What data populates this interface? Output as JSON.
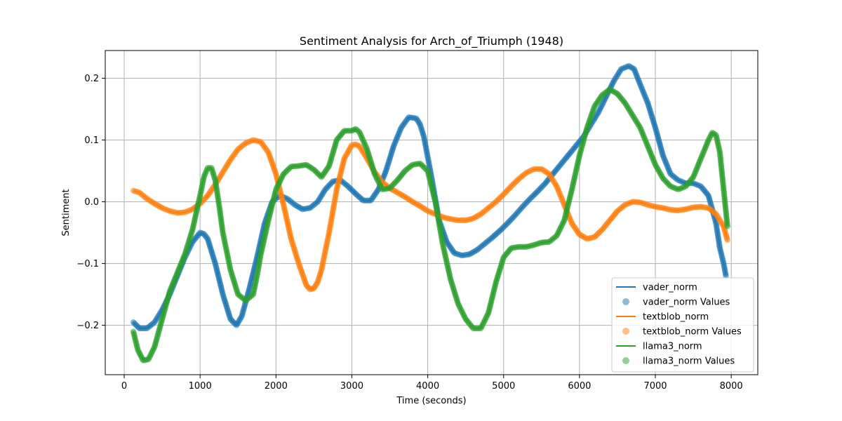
{
  "chart_data": {
    "type": "line",
    "title": "Sentiment Analysis for Arch_of_Triumph (1948)",
    "xlabel": "Time (seconds)",
    "ylabel": "Sentiment",
    "xlim": [
      -250,
      8350
    ],
    "ylim": [
      -0.28,
      0.245
    ],
    "xticks": [
      0,
      1000,
      2000,
      3000,
      4000,
      5000,
      6000,
      7000,
      8000
    ],
    "yticks": [
      -0.2,
      -0.1,
      0.0,
      0.1,
      0.2
    ],
    "xtick_labels": [
      "0",
      "1000",
      "2000",
      "3000",
      "4000",
      "5000",
      "6000",
      "7000",
      "8000"
    ],
    "ytick_labels": [
      "−0.2",
      "−0.1",
      "0.0",
      "0.1",
      "0.2"
    ],
    "grid": true,
    "legend_position": "lower-right",
    "series": [
      {
        "name": "vader_norm",
        "color": "#1f77b4",
        "x": [
          120,
          200,
          300,
          400,
          500,
          600,
          700,
          800,
          900,
          1000,
          1050,
          1100,
          1200,
          1300,
          1400,
          1480,
          1550,
          1650,
          1750,
          1850,
          1950,
          2050,
          2150,
          2250,
          2350,
          2450,
          2550,
          2650,
          2750,
          2850,
          2950,
          3050,
          3150,
          3250,
          3350,
          3450,
          3550,
          3650,
          3750,
          3850,
          3900,
          3950,
          4050,
          4150,
          4250,
          4350,
          4450,
          4550,
          4650,
          4750,
          4850,
          4950,
          5050,
          5150,
          5250,
          5350,
          5450,
          5550,
          5650,
          5750,
          5850,
          5950,
          6050,
          6150,
          6250,
          6350,
          6450,
          6550,
          6650,
          6720,
          6800,
          6900,
          7000,
          7100,
          7200,
          7300,
          7400,
          7500,
          7600,
          7700,
          7800,
          7850,
          7900,
          7930
        ],
        "y": [
          -0.195,
          -0.205,
          -0.205,
          -0.195,
          -0.175,
          -0.15,
          -0.12,
          -0.09,
          -0.065,
          -0.05,
          -0.052,
          -0.06,
          -0.1,
          -0.15,
          -0.19,
          -0.2,
          -0.185,
          -0.14,
          -0.09,
          -0.035,
          0.0,
          0.01,
          0.005,
          -0.005,
          -0.012,
          -0.01,
          0.0,
          0.02,
          0.033,
          0.035,
          0.025,
          0.013,
          0.002,
          0.002,
          0.02,
          0.05,
          0.09,
          0.12,
          0.137,
          0.135,
          0.125,
          0.105,
          0.04,
          -0.03,
          -0.065,
          -0.083,
          -0.087,
          -0.085,
          -0.078,
          -0.068,
          -0.058,
          -0.047,
          -0.035,
          -0.022,
          -0.008,
          0.005,
          0.017,
          0.03,
          0.045,
          0.06,
          0.075,
          0.09,
          0.105,
          0.125,
          0.145,
          0.17,
          0.195,
          0.215,
          0.22,
          0.215,
          0.19,
          0.16,
          0.12,
          0.075,
          0.045,
          0.035,
          0.03,
          0.03,
          0.025,
          0.01,
          -0.035,
          -0.075,
          -0.1,
          -0.12
        ]
      },
      {
        "name": "textblob_norm",
        "color": "#ff7f0e",
        "x": [
          120,
          200,
          300,
          400,
          500,
          600,
          700,
          800,
          900,
          1000,
          1100,
          1200,
          1300,
          1400,
          1500,
          1600,
          1700,
          1800,
          1900,
          2000,
          2100,
          2200,
          2300,
          2400,
          2450,
          2500,
          2550,
          2600,
          2700,
          2800,
          2900,
          3000,
          3050,
          3100,
          3200,
          3300,
          3400,
          3500,
          3600,
          3700,
          3800,
          3900,
          4000,
          4100,
          4200,
          4300,
          4400,
          4500,
          4600,
          4700,
          4800,
          4900,
          5000,
          5100,
          5200,
          5300,
          5400,
          5500,
          5600,
          5700,
          5800,
          5900,
          6000,
          6100,
          6200,
          6300,
          6400,
          6500,
          6600,
          6700,
          6800,
          6900,
          7000,
          7100,
          7200,
          7300,
          7400,
          7500,
          7600,
          7700,
          7800,
          7900,
          7950
        ],
        "y": [
          0.018,
          0.015,
          0.005,
          -0.003,
          -0.01,
          -0.015,
          -0.018,
          -0.017,
          -0.012,
          -0.003,
          0.01,
          0.028,
          0.048,
          0.068,
          0.085,
          0.095,
          0.1,
          0.097,
          0.08,
          0.045,
          -0.005,
          -0.06,
          -0.1,
          -0.135,
          -0.142,
          -0.14,
          -0.13,
          -0.11,
          -0.05,
          0.02,
          0.07,
          0.092,
          0.093,
          0.09,
          0.07,
          0.048,
          0.032,
          0.022,
          0.015,
          0.008,
          0.0,
          -0.007,
          -0.015,
          -0.02,
          -0.025,
          -0.028,
          -0.03,
          -0.03,
          -0.027,
          -0.02,
          -0.01,
          0.0,
          0.012,
          0.025,
          0.037,
          0.047,
          0.053,
          0.053,
          0.045,
          0.025,
          -0.005,
          -0.035,
          -0.053,
          -0.06,
          -0.057,
          -0.045,
          -0.03,
          -0.015,
          -0.005,
          0.0,
          -0.001,
          -0.005,
          -0.008,
          -0.01,
          -0.013,
          -0.014,
          -0.012,
          -0.009,
          -0.008,
          -0.01,
          -0.02,
          -0.04,
          -0.062
        ]
      },
      {
        "name": "llama3_norm",
        "color": "#2ca02c",
        "x": [
          120,
          180,
          250,
          320,
          400,
          500,
          600,
          700,
          800,
          900,
          1000,
          1050,
          1100,
          1150,
          1200,
          1250,
          1300,
          1400,
          1500,
          1600,
          1700,
          1750,
          1800,
          1900,
          2000,
          2100,
          2200,
          2300,
          2400,
          2500,
          2600,
          2700,
          2800,
          2900,
          3000,
          3050,
          3100,
          3200,
          3300,
          3400,
          3500,
          3600,
          3700,
          3800,
          3900,
          4000,
          4100,
          4200,
          4300,
          4400,
          4500,
          4600,
          4700,
          4800,
          4900,
          5000,
          5100,
          5200,
          5300,
          5400,
          5500,
          5600,
          5700,
          5800,
          5900,
          6000,
          6100,
          6200,
          6300,
          6400,
          6500,
          6600,
          6700,
          6800,
          6900,
          7000,
          7100,
          7200,
          7300,
          7400,
          7500,
          7600,
          7700,
          7750,
          7800,
          7850,
          7900,
          7950
        ],
        "y": [
          -0.21,
          -0.24,
          -0.257,
          -0.255,
          -0.235,
          -0.19,
          -0.145,
          -0.115,
          -0.085,
          -0.045,
          0.01,
          0.04,
          0.055,
          0.055,
          0.035,
          -0.005,
          -0.05,
          -0.11,
          -0.15,
          -0.16,
          -0.15,
          -0.12,
          -0.085,
          -0.03,
          0.02,
          0.045,
          0.057,
          0.058,
          0.06,
          0.052,
          0.04,
          0.058,
          0.1,
          0.115,
          0.115,
          0.118,
          0.113,
          0.085,
          0.045,
          0.02,
          0.022,
          0.035,
          0.05,
          0.06,
          0.062,
          0.05,
          0.0,
          -0.07,
          -0.125,
          -0.165,
          -0.19,
          -0.205,
          -0.205,
          -0.18,
          -0.13,
          -0.09,
          -0.075,
          -0.073,
          -0.073,
          -0.07,
          -0.066,
          -0.065,
          -0.055,
          -0.03,
          0.02,
          0.075,
          0.12,
          0.155,
          0.173,
          0.182,
          0.175,
          0.16,
          0.14,
          0.12,
          0.09,
          0.06,
          0.038,
          0.025,
          0.02,
          0.025,
          0.04,
          0.07,
          0.1,
          0.112,
          0.108,
          0.08,
          0.02,
          -0.04
        ]
      }
    ],
    "legend_entries": [
      "vader_norm",
      "vader_norm Values",
      "textblob_norm",
      "textblob_norm Values",
      "llama3_norm",
      "llama3_norm Values"
    ]
  }
}
